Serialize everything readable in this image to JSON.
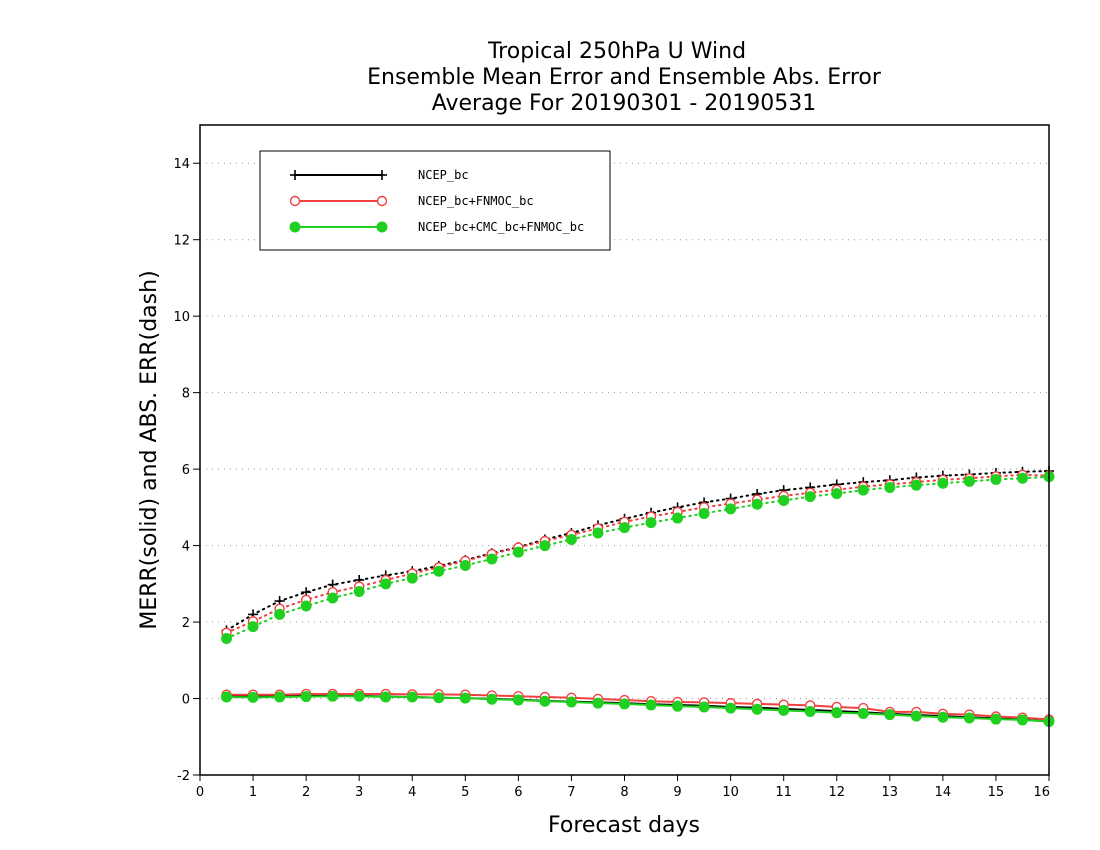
{
  "chart_data": {
    "type": "line",
    "title": [
      "Tropical 250hPa U Wind",
      "Ensemble Mean Error and Ensemble Abs. Error",
      "Average For 20190301 - 20190531"
    ],
    "xlabel": "Forecast days",
    "ylabel": "MERR(solid) and ABS. ERR(dash)",
    "xlim": [
      0,
      16
    ],
    "ylim": [
      -2,
      15
    ],
    "xticks": [
      0,
      1,
      2,
      3,
      4,
      5,
      6,
      7,
      8,
      9,
      10,
      11,
      12,
      13,
      14,
      15,
      16
    ],
    "yticks": [
      -2,
      0,
      2,
      4,
      6,
      8,
      10,
      12,
      14
    ],
    "grid": "horizontal dotted",
    "legend_position": "top-left",
    "x": [
      0.5,
      1,
      1.5,
      2,
      2.5,
      3,
      3.5,
      4,
      4.5,
      5,
      5.5,
      6,
      6.5,
      7,
      7.5,
      8,
      8.5,
      9,
      9.5,
      10,
      10.5,
      11,
      11.5,
      12,
      12.5,
      13,
      13.5,
      14,
      14.5,
      15,
      15.5,
      16
    ],
    "series": [
      {
        "name": "NCEP_bc",
        "color": "#000000",
        "marker": "plus",
        "merr": [
          0.07,
          0.06,
          0.07,
          0.08,
          0.08,
          0.07,
          0.05,
          0.04,
          0.02,
          0.01,
          -0.01,
          -0.03,
          -0.06,
          -0.08,
          -0.1,
          -0.12,
          -0.15,
          -0.17,
          -0.19,
          -0.22,
          -0.24,
          -0.27,
          -0.3,
          -0.33,
          -0.36,
          -0.4,
          -0.43,
          -0.46,
          -0.49,
          -0.52,
          -0.55,
          -0.6
        ],
        "abs_err": [
          1.78,
          2.2,
          2.55,
          2.78,
          2.98,
          3.1,
          3.22,
          3.33,
          3.47,
          3.62,
          3.8,
          3.96,
          4.16,
          4.33,
          4.53,
          4.7,
          4.86,
          5.0,
          5.13,
          5.23,
          5.35,
          5.45,
          5.52,
          5.6,
          5.66,
          5.71,
          5.78,
          5.83,
          5.86,
          5.9,
          5.93,
          5.95
        ]
      },
      {
        "name": "NCEP_bc+FNMOC_bc",
        "color": "#f04040",
        "marker": "open-circle",
        "merr": [
          0.1,
          0.1,
          0.1,
          0.12,
          0.12,
          0.12,
          0.12,
          0.11,
          0.11,
          0.1,
          0.08,
          0.06,
          0.04,
          0.02,
          -0.01,
          -0.04,
          -0.07,
          -0.09,
          -0.1,
          -0.12,
          -0.14,
          -0.16,
          -0.18,
          -0.22,
          -0.25,
          -0.35,
          -0.35,
          -0.4,
          -0.42,
          -0.47,
          -0.5,
          -0.55
        ],
        "abs_err": [
          1.72,
          2.02,
          2.35,
          2.58,
          2.78,
          2.93,
          3.1,
          3.27,
          3.43,
          3.6,
          3.78,
          3.95,
          4.12,
          4.28,
          4.45,
          4.62,
          4.76,
          4.88,
          5.0,
          5.1,
          5.2,
          5.3,
          5.38,
          5.46,
          5.54,
          5.6,
          5.66,
          5.72,
          5.76,
          5.81,
          5.85,
          5.83
        ]
      },
      {
        "name": "NCEP_bc+CMC_bc+FNMOC_bc",
        "color": "#20d020",
        "marker": "filled-circle",
        "merr": [
          0.04,
          0.03,
          0.04,
          0.05,
          0.06,
          0.06,
          0.04,
          0.04,
          0.02,
          0.01,
          -0.02,
          -0.04,
          -0.07,
          -0.09,
          -0.12,
          -0.14,
          -0.17,
          -0.2,
          -0.22,
          -0.25,
          -0.28,
          -0.31,
          -0.34,
          -0.37,
          -0.39,
          -0.42,
          -0.46,
          -0.49,
          -0.51,
          -0.54,
          -0.56,
          -0.6
        ],
        "abs_err": [
          1.57,
          1.88,
          2.2,
          2.42,
          2.63,
          2.8,
          3.0,
          3.15,
          3.33,
          3.48,
          3.65,
          3.83,
          4.0,
          4.16,
          4.33,
          4.47,
          4.6,
          4.72,
          4.84,
          4.96,
          5.08,
          5.18,
          5.28,
          5.36,
          5.45,
          5.52,
          5.58,
          5.63,
          5.68,
          5.73,
          5.76,
          5.8
        ]
      }
    ]
  }
}
